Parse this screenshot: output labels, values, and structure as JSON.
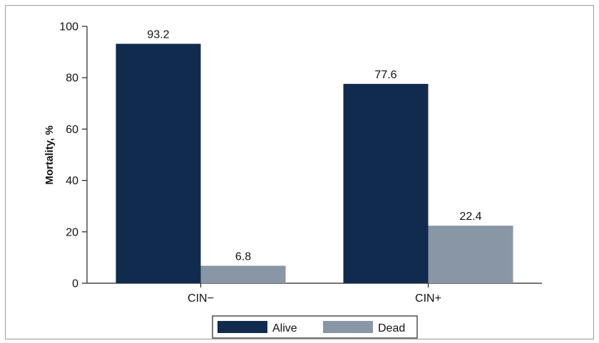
{
  "chart_data": {
    "type": "bar",
    "categories": [
      "CIN−",
      "CIN+"
    ],
    "series": [
      {
        "name": "Alive",
        "values": [
          93.2,
          77.6
        ],
        "color": "#112b4f"
      },
      {
        "name": "Dead",
        "values": [
          6.8,
          22.4
        ],
        "color": "#8896a6"
      }
    ],
    "title": "",
    "xlabel": "",
    "ylabel": "Mortality, %",
    "ylim": [
      0,
      100
    ],
    "yticks": [
      0,
      20,
      40,
      60,
      80,
      100
    ],
    "data_labels": [
      [
        "93.2",
        "77.6"
      ],
      [
        "6.8",
        "22.4"
      ]
    ],
    "grid": false,
    "legend": "bottom-center"
  }
}
